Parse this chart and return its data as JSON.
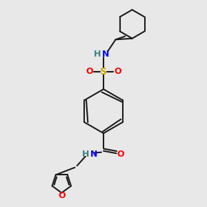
{
  "background_color": "#e8e8e8",
  "bond_color": "#1a1a1a",
  "N_color": "#0000ff",
  "O_color": "#ff0000",
  "S_color": "#ccaa00",
  "teal_color": "#408080",
  "figsize": [
    3.0,
    3.0
  ],
  "dpi": 100,
  "xlim": [
    0,
    300
  ],
  "ylim": [
    0,
    300
  ]
}
